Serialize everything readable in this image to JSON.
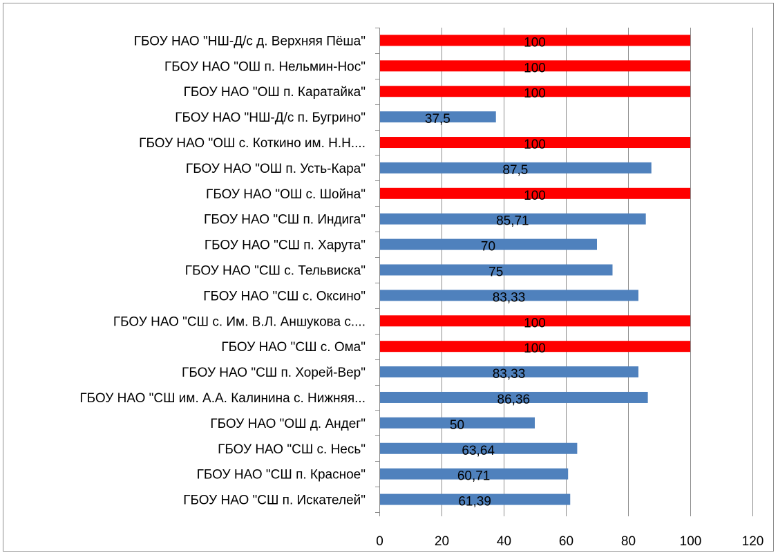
{
  "chart_data": {
    "type": "bar",
    "orientation": "horizontal",
    "categories": [
      "ГБОУ НАО \"НШ-Д/с  д. Верхняя Пёша\"",
      "ГБОУ НАО \"ОШ п. Нельмин-Нос\"",
      "ГБОУ НАО \"ОШ п. Каратайка\"",
      "ГБОУ НАО \"НШ-Д/с п. Бугрино\"",
      "ГБОУ НАО \"ОШ с. Коткино им. Н.Н....",
      "ГБОУ НАО \"ОШ п. Усть-Кара\"",
      "ГБОУ НАО \"ОШ с. Шойна\"",
      "ГБОУ НАО \"СШ п. Индига\"",
      "ГБОУ НАО \"СШ п. Харута\"",
      "ГБОУ НАО \"СШ с. Тельвиска\"",
      "ГБОУ НАО \"СШ с. Оксино\"",
      "ГБОУ НАО \"СШ с. Им. В.Л. Аншукова с....",
      "ГБОУ НАО \"СШ с. Ома\"",
      "ГБОУ НАО \"СШ п. Хорей-Вер\"",
      "ГБОУ НАО \"СШ им. А.А. Калинина с. Нижняя...",
      "ГБОУ НАО \"ОШ д. Андег\"",
      "ГБОУ НАО \"СШ с. Несь\"",
      "ГБОУ НАО \"СШ п. Красное\"",
      "ГБОУ НАО \"СШ п. Искателей\""
    ],
    "values": [
      100,
      100,
      100,
      37.5,
      100,
      87.5,
      100,
      85.71,
      70,
      75,
      83.33,
      100,
      100,
      83.33,
      86.36,
      50,
      63.64,
      60.71,
      61.39
    ],
    "value_labels": [
      "100",
      "100",
      "100",
      "37,5",
      "100",
      "87,5",
      "100",
      "85,71",
      "70",
      "75",
      "83,33",
      "100",
      "100",
      "83,33",
      "86,36",
      "50",
      "63,64",
      "60,71",
      "61,39"
    ],
    "xlim": [
      0,
      120
    ],
    "x_ticks": [
      0,
      20,
      40,
      60,
      80,
      100,
      120
    ],
    "x_tick_labels": [
      "0",
      "20",
      "40",
      "60",
      "80",
      "100",
      "120"
    ],
    "grid": "vertical",
    "legend": "none",
    "colors": {
      "highlight": "#ff0000",
      "default": "#4f81bd",
      "grid": "#8c8c8c",
      "axis": "#8c8c8c"
    },
    "highlight_rule": "value == 100"
  }
}
